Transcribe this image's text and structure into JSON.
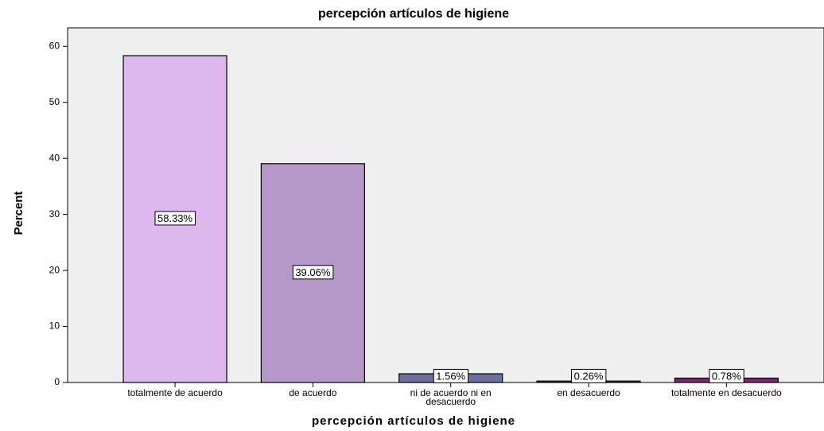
{
  "chart_data": {
    "type": "bar",
    "title": "percepción artículos de higiene",
    "x_label": "percepción artículos de higiene",
    "y_label": "Percent",
    "categories": [
      "totalmente de acuerdo",
      "de acuerdo",
      "ni de acuerdo ni en desacuerdo",
      "en desacuerdo",
      "totalmente en desacuerdo"
    ],
    "values": [
      58.33,
      39.06,
      1.56,
      0.26,
      0.78
    ],
    "value_labels": [
      "58.33%",
      "39.06%",
      "1.56%",
      "0.26%",
      "0.78%"
    ],
    "colors": [
      "#dcb8ef",
      "#b597c9",
      "#6e6f9f",
      "#6a4a5a",
      "#7b2a6e"
    ],
    "ylim": [
      0,
      63.3
    ],
    "yticks": [
      0,
      10,
      20,
      30,
      40,
      50,
      60
    ]
  }
}
